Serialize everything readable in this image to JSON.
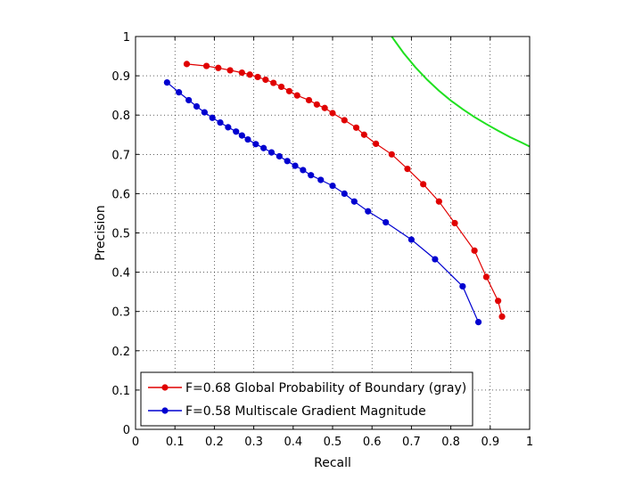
{
  "chart_data": {
    "type": "line",
    "title": "",
    "xlabel": "Recall",
    "ylabel": "Precision",
    "xlim": [
      0,
      1
    ],
    "ylim": [
      0,
      1
    ],
    "x_ticks": [
      "0",
      "0.1",
      "0.2",
      "0.3",
      "0.4",
      "0.5",
      "0.6",
      "0.7",
      "0.8",
      "0.9",
      "1"
    ],
    "y_ticks": [
      "0",
      "0.1",
      "0.2",
      "0.3",
      "0.4",
      "0.5",
      "0.6",
      "0.7",
      "0.8",
      "0.9",
      "1"
    ],
    "grid": true,
    "legend_position": "bottom-left",
    "series": [
      {
        "name": "F=0.68 Global Probability of Boundary (gray)",
        "color": "#e00000",
        "marker": "dot",
        "points": [
          [
            0.13,
            0.93
          ],
          [
            0.18,
            0.925
          ],
          [
            0.21,
            0.92
          ],
          [
            0.24,
            0.914
          ],
          [
            0.27,
            0.908
          ],
          [
            0.29,
            0.903
          ],
          [
            0.31,
            0.897
          ],
          [
            0.33,
            0.89
          ],
          [
            0.35,
            0.882
          ],
          [
            0.37,
            0.872
          ],
          [
            0.39,
            0.861
          ],
          [
            0.41,
            0.85
          ],
          [
            0.44,
            0.838
          ],
          [
            0.46,
            0.827
          ],
          [
            0.48,
            0.818
          ],
          [
            0.5,
            0.805
          ],
          [
            0.53,
            0.787
          ],
          [
            0.56,
            0.768
          ],
          [
            0.58,
            0.75
          ],
          [
            0.61,
            0.727
          ],
          [
            0.65,
            0.7
          ],
          [
            0.69,
            0.663
          ],
          [
            0.73,
            0.624
          ],
          [
            0.77,
            0.58
          ],
          [
            0.81,
            0.525
          ],
          [
            0.86,
            0.455
          ],
          [
            0.89,
            0.388
          ],
          [
            0.92,
            0.327
          ],
          [
            0.93,
            0.287
          ]
        ]
      },
      {
        "name": "F=0.58 Multiscale Gradient Magnitude",
        "color": "#0000d0",
        "marker": "dot",
        "points": [
          [
            0.08,
            0.883
          ],
          [
            0.11,
            0.858
          ],
          [
            0.135,
            0.838
          ],
          [
            0.155,
            0.822
          ],
          [
            0.175,
            0.807
          ],
          [
            0.195,
            0.793
          ],
          [
            0.215,
            0.781
          ],
          [
            0.235,
            0.769
          ],
          [
            0.255,
            0.758
          ],
          [
            0.27,
            0.748
          ],
          [
            0.285,
            0.738
          ],
          [
            0.305,
            0.726
          ],
          [
            0.325,
            0.716
          ],
          [
            0.345,
            0.705
          ],
          [
            0.365,
            0.695
          ],
          [
            0.385,
            0.683
          ],
          [
            0.405,
            0.671
          ],
          [
            0.425,
            0.66
          ],
          [
            0.445,
            0.647
          ],
          [
            0.47,
            0.635
          ],
          [
            0.5,
            0.62
          ],
          [
            0.53,
            0.6
          ],
          [
            0.555,
            0.58
          ],
          [
            0.59,
            0.555
          ],
          [
            0.635,
            0.527
          ],
          [
            0.7,
            0.483
          ],
          [
            0.76,
            0.433
          ],
          [
            0.83,
            0.364
          ],
          [
            0.87,
            0.273
          ]
        ]
      },
      {
        "name": "",
        "color": "#20e020",
        "marker": "none",
        "points": [
          [
            0.65,
            1.0
          ],
          [
            0.68,
            0.958
          ],
          [
            0.71,
            0.922
          ],
          [
            0.74,
            0.89
          ],
          [
            0.77,
            0.862
          ],
          [
            0.8,
            0.837
          ],
          [
            0.83,
            0.815
          ],
          [
            0.86,
            0.795
          ],
          [
            0.89,
            0.777
          ],
          [
            0.92,
            0.76
          ],
          [
            0.95,
            0.744
          ],
          [
            0.98,
            0.73
          ],
          [
            1.0,
            0.72
          ]
        ]
      }
    ]
  }
}
